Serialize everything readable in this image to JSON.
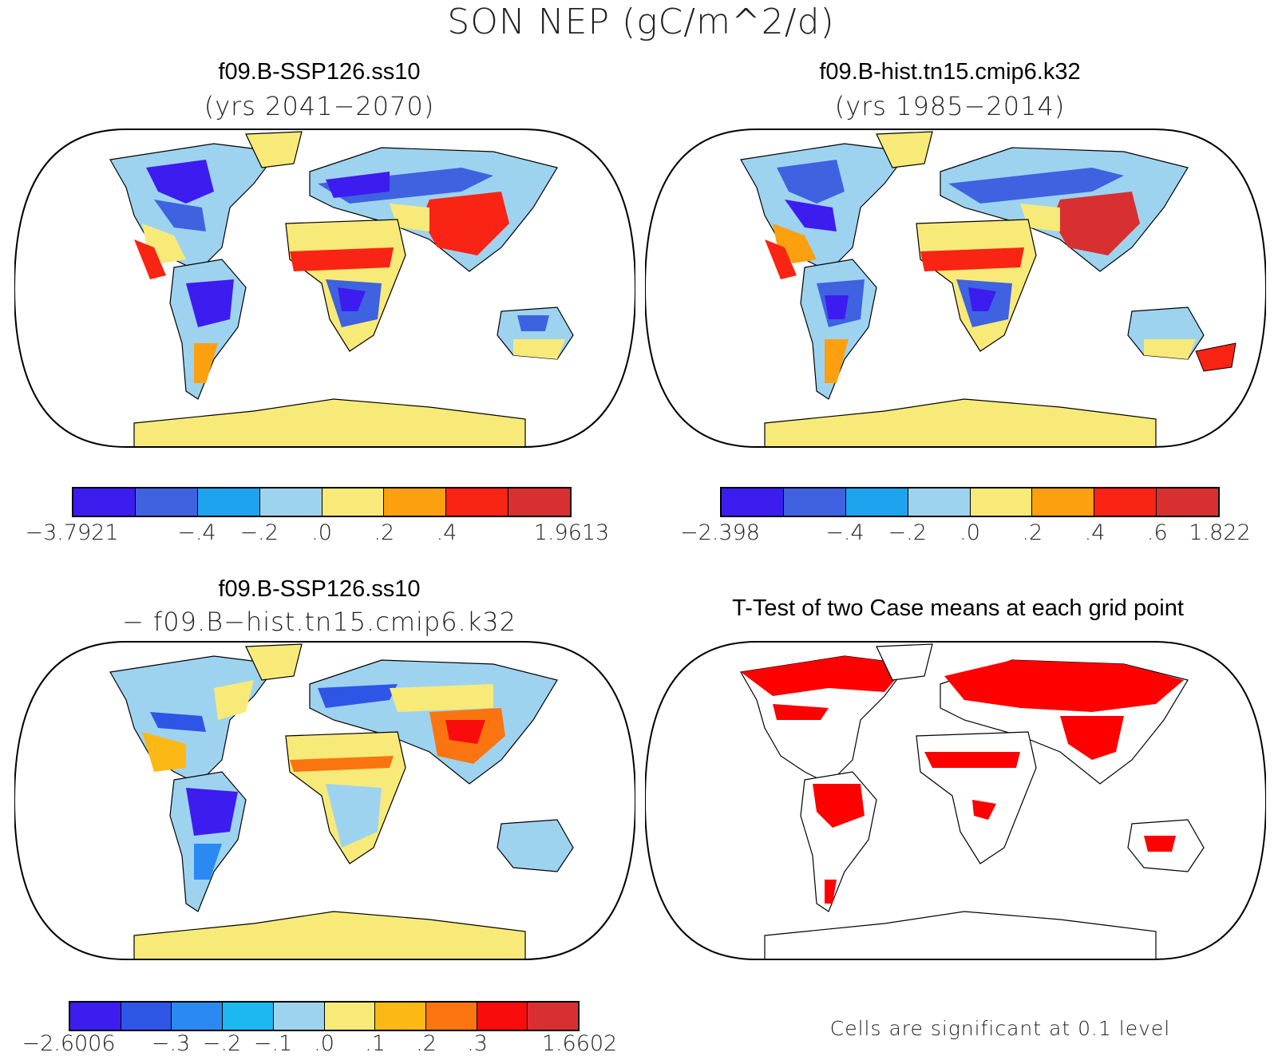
{
  "title": "SON NEP (gC/m^2/d)",
  "panels": [
    {
      "title": "f09.B-SSP126.ss10",
      "subtitle": "(yrs 2041−2070)"
    },
    {
      "title": "f09.B-hist.tn15.cmip6.k32",
      "subtitle": "(yrs 1985−2014)"
    },
    {
      "title": "f09.B-SSP126.ss10",
      "subtitle": "− f09.B−hist.tn15.cmip6.k32"
    },
    {
      "title": "T-Test of two Case means at each grid point",
      "subtitle": ""
    }
  ],
  "colorbars": [
    {
      "colors": [
        "#3d1cf0",
        "#3f62e0",
        "#1ea3ee",
        "#9ed3f0",
        "#f8ea78",
        "#fca010",
        "#fa2414",
        "#d83030"
      ],
      "ticks": [
        "−3.7921",
        "",
        "−.4",
        "−.2",
        ".0",
        ".2",
        ".4",
        "",
        "1.9613"
      ]
    },
    {
      "colors": [
        "#3d1cf0",
        "#3f62e0",
        "#1ea3ee",
        "#9ed3f0",
        "#f8ea78",
        "#fca010",
        "#fa2414",
        "#d83030"
      ],
      "ticks": [
        "−2.398",
        "",
        "−.4",
        "−.2",
        ".0",
        ".2",
        ".4",
        ".6",
        "1.822"
      ]
    },
    {
      "colors": [
        "#3d1cf0",
        "#2e55e6",
        "#2a8af2",
        "#1cb8f2",
        "#9ed3f0",
        "#f8ea78",
        "#fcb814",
        "#fa7410",
        "#fa0c0c",
        "#d83030"
      ],
      "ticks": [
        "−2.6006",
        "",
        "−.3",
        "−.2",
        "−.1",
        ".0",
        ".1",
        ".2",
        ".3",
        "",
        "1.6602"
      ]
    }
  ],
  "footnote": "Cells are significant at 0.1 level",
  "colors": {
    "significant": "#ff0000",
    "land_fill_mean": "#9ed3f0",
    "antarctica": "#f8ea78"
  }
}
